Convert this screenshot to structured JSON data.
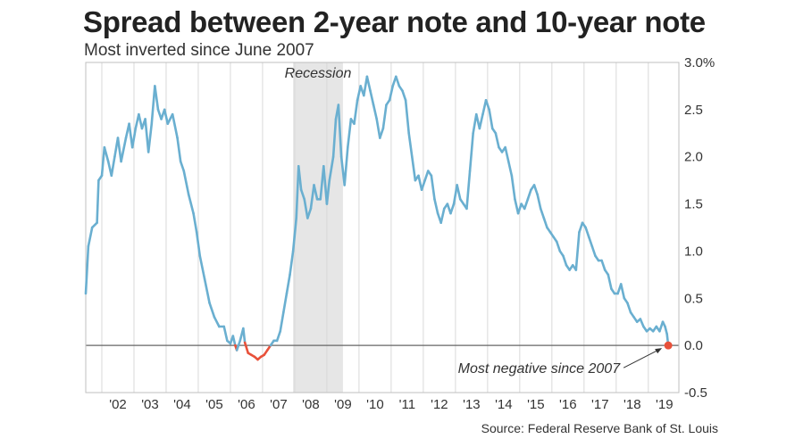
{
  "title": "Spread between 2-year note and 10-year note",
  "subtitle": "Most inverted since June 2007",
  "source": "Source: Federal Reserve Bank of St. Louis",
  "colors": {
    "positive": "#6aafd0",
    "negative": "#e8513a",
    "recession": "#e6e6e6",
    "grid": "#d9d9d9",
    "zero_line": "#666666",
    "marker": "#e8513a"
  },
  "chart_data": {
    "type": "line",
    "x_unit": "year",
    "xlim": [
      2001.5,
      2019.95
    ],
    "ylim": [
      -0.5,
      3.0
    ],
    "y_ticks": [
      -0.5,
      0.0,
      0.5,
      1.0,
      1.5,
      2.0,
      2.5,
      3.0
    ],
    "y_tick_labels": [
      "-0.5",
      "0.0",
      "0.5",
      "1.0",
      "1.5",
      "2.0",
      "2.5",
      "3.0%"
    ],
    "x_tick_years": [
      2002,
      2003,
      2004,
      2005,
      2006,
      2007,
      2008,
      2009,
      2010,
      2011,
      2012,
      2013,
      2014,
      2015,
      2016,
      2017,
      2018,
      2019
    ],
    "x_tick_labels": [
      "'02",
      "'03",
      "'04",
      "'05",
      "'06",
      "'07",
      "'08",
      "'09",
      "'10",
      "'11",
      "'12",
      "'13",
      "'14",
      "'15",
      "'16",
      "'17",
      "'18",
      "'19"
    ],
    "grid": "vertical",
    "recession": {
      "label": "Recession",
      "start": 2007.95,
      "end": 2009.5
    },
    "series": [
      {
        "values": [
          [
            2001.5,
            0.55
          ],
          [
            2001.58,
            1.05
          ],
          [
            2001.7,
            1.25
          ],
          [
            2001.85,
            1.3
          ],
          [
            2001.9,
            1.75
          ],
          [
            2002.0,
            1.8
          ],
          [
            2002.08,
            2.1
          ],
          [
            2002.2,
            1.95
          ],
          [
            2002.3,
            1.8
          ],
          [
            2002.4,
            2.0
          ],
          [
            2002.5,
            2.2
          ],
          [
            2002.6,
            1.95
          ],
          [
            2002.75,
            2.2
          ],
          [
            2002.85,
            2.35
          ],
          [
            2002.95,
            2.1
          ],
          [
            2003.05,
            2.3
          ],
          [
            2003.15,
            2.45
          ],
          [
            2003.25,
            2.3
          ],
          [
            2003.35,
            2.4
          ],
          [
            2003.45,
            2.05
          ],
          [
            2003.55,
            2.35
          ],
          [
            2003.65,
            2.75
          ],
          [
            2003.75,
            2.5
          ],
          [
            2003.85,
            2.4
          ],
          [
            2003.95,
            2.5
          ],
          [
            2004.05,
            2.35
          ],
          [
            2004.2,
            2.45
          ],
          [
            2004.35,
            2.2
          ],
          [
            2004.45,
            1.95
          ],
          [
            2004.55,
            1.85
          ],
          [
            2004.7,
            1.6
          ],
          [
            2004.85,
            1.4
          ],
          [
            2004.95,
            1.2
          ],
          [
            2005.05,
            0.95
          ],
          [
            2005.2,
            0.7
          ],
          [
            2005.35,
            0.45
          ],
          [
            2005.5,
            0.3
          ],
          [
            2005.65,
            0.2
          ],
          [
            2005.8,
            0.2
          ],
          [
            2005.9,
            0.05
          ],
          [
            2006.0,
            0.02
          ],
          [
            2006.08,
            0.1
          ],
          [
            2006.15,
            0.0
          ],
          [
            2006.2,
            -0.05
          ],
          [
            2006.3,
            0.05
          ],
          [
            2006.4,
            0.18
          ],
          [
            2006.45,
            0.03
          ],
          [
            2006.55,
            -0.08
          ],
          [
            2006.65,
            -0.1
          ],
          [
            2006.75,
            -0.12
          ],
          [
            2006.85,
            -0.15
          ],
          [
            2006.95,
            -0.12
          ],
          [
            2007.05,
            -0.1
          ],
          [
            2007.15,
            -0.05
          ],
          [
            2007.25,
            0.0
          ],
          [
            2007.35,
            0.05
          ],
          [
            2007.45,
            0.05
          ],
          [
            2007.55,
            0.15
          ],
          [
            2007.65,
            0.35
          ],
          [
            2007.75,
            0.55
          ],
          [
            2007.85,
            0.75
          ],
          [
            2007.95,
            1.0
          ],
          [
            2008.05,
            1.35
          ],
          [
            2008.12,
            1.9
          ],
          [
            2008.2,
            1.65
          ],
          [
            2008.3,
            1.55
          ],
          [
            2008.4,
            1.35
          ],
          [
            2008.5,
            1.45
          ],
          [
            2008.6,
            1.7
          ],
          [
            2008.7,
            1.55
          ],
          [
            2008.8,
            1.55
          ],
          [
            2008.9,
            1.9
          ],
          [
            2009.0,
            1.5
          ],
          [
            2009.08,
            1.75
          ],
          [
            2009.2,
            2.0
          ],
          [
            2009.28,
            2.4
          ],
          [
            2009.36,
            2.55
          ],
          [
            2009.45,
            2.0
          ],
          [
            2009.55,
            1.7
          ],
          [
            2009.65,
            2.1
          ],
          [
            2009.75,
            2.4
          ],
          [
            2009.85,
            2.35
          ],
          [
            2009.95,
            2.6
          ],
          [
            2010.05,
            2.75
          ],
          [
            2010.15,
            2.65
          ],
          [
            2010.25,
            2.85
          ],
          [
            2010.35,
            2.7
          ],
          [
            2010.45,
            2.55
          ],
          [
            2010.55,
            2.4
          ],
          [
            2010.65,
            2.2
          ],
          [
            2010.75,
            2.3
          ],
          [
            2010.85,
            2.55
          ],
          [
            2010.95,
            2.6
          ],
          [
            2011.05,
            2.75
          ],
          [
            2011.15,
            2.85
          ],
          [
            2011.25,
            2.75
          ],
          [
            2011.35,
            2.7
          ],
          [
            2011.45,
            2.6
          ],
          [
            2011.55,
            2.25
          ],
          [
            2011.65,
            2.0
          ],
          [
            2011.75,
            1.75
          ],
          [
            2011.85,
            1.8
          ],
          [
            2011.95,
            1.65
          ],
          [
            2012.05,
            1.75
          ],
          [
            2012.15,
            1.85
          ],
          [
            2012.25,
            1.8
          ],
          [
            2012.35,
            1.55
          ],
          [
            2012.45,
            1.4
          ],
          [
            2012.55,
            1.3
          ],
          [
            2012.65,
            1.45
          ],
          [
            2012.75,
            1.5
          ],
          [
            2012.85,
            1.4
          ],
          [
            2012.95,
            1.5
          ],
          [
            2013.05,
            1.7
          ],
          [
            2013.15,
            1.55
          ],
          [
            2013.25,
            1.5
          ],
          [
            2013.35,
            1.45
          ],
          [
            2013.45,
            1.85
          ],
          [
            2013.55,
            2.25
          ],
          [
            2013.65,
            2.45
          ],
          [
            2013.75,
            2.3
          ],
          [
            2013.85,
            2.45
          ],
          [
            2013.95,
            2.6
          ],
          [
            2014.05,
            2.5
          ],
          [
            2014.15,
            2.3
          ],
          [
            2014.25,
            2.25
          ],
          [
            2014.35,
            2.1
          ],
          [
            2014.45,
            2.05
          ],
          [
            2014.55,
            2.1
          ],
          [
            2014.65,
            1.95
          ],
          [
            2014.75,
            1.8
          ],
          [
            2014.85,
            1.55
          ],
          [
            2014.95,
            1.4
          ],
          [
            2015.05,
            1.5
          ],
          [
            2015.15,
            1.45
          ],
          [
            2015.25,
            1.55
          ],
          [
            2015.35,
            1.65
          ],
          [
            2015.45,
            1.7
          ],
          [
            2015.55,
            1.6
          ],
          [
            2015.65,
            1.45
          ],
          [
            2015.75,
            1.35
          ],
          [
            2015.85,
            1.25
          ],
          [
            2015.95,
            1.2
          ],
          [
            2016.05,
            1.15
          ],
          [
            2016.15,
            1.1
          ],
          [
            2016.25,
            1.0
          ],
          [
            2016.35,
            0.95
          ],
          [
            2016.45,
            0.85
          ],
          [
            2016.55,
            0.8
          ],
          [
            2016.65,
            0.85
          ],
          [
            2016.75,
            0.8
          ],
          [
            2016.85,
            1.2
          ],
          [
            2016.95,
            1.3
          ],
          [
            2017.05,
            1.25
          ],
          [
            2017.15,
            1.15
          ],
          [
            2017.25,
            1.05
          ],
          [
            2017.35,
            0.95
          ],
          [
            2017.45,
            0.9
          ],
          [
            2017.55,
            0.9
          ],
          [
            2017.65,
            0.8
          ],
          [
            2017.75,
            0.75
          ],
          [
            2017.85,
            0.6
          ],
          [
            2017.95,
            0.55
          ],
          [
            2018.05,
            0.55
          ],
          [
            2018.15,
            0.65
          ],
          [
            2018.25,
            0.5
          ],
          [
            2018.35,
            0.45
          ],
          [
            2018.45,
            0.35
          ],
          [
            2018.55,
            0.3
          ],
          [
            2018.65,
            0.25
          ],
          [
            2018.75,
            0.28
          ],
          [
            2018.85,
            0.2
          ],
          [
            2018.95,
            0.15
          ],
          [
            2019.05,
            0.18
          ],
          [
            2019.15,
            0.15
          ],
          [
            2019.25,
            0.2
          ],
          [
            2019.35,
            0.15
          ],
          [
            2019.45,
            0.25
          ],
          [
            2019.52,
            0.2
          ],
          [
            2019.58,
            0.12
          ],
          [
            2019.62,
            0.0
          ]
        ]
      }
    ],
    "annotations": [
      {
        "text": "Recession"
      },
      {
        "text": "Most negative since 2007",
        "x": 2019.62,
        "y": 0.0
      }
    ]
  }
}
